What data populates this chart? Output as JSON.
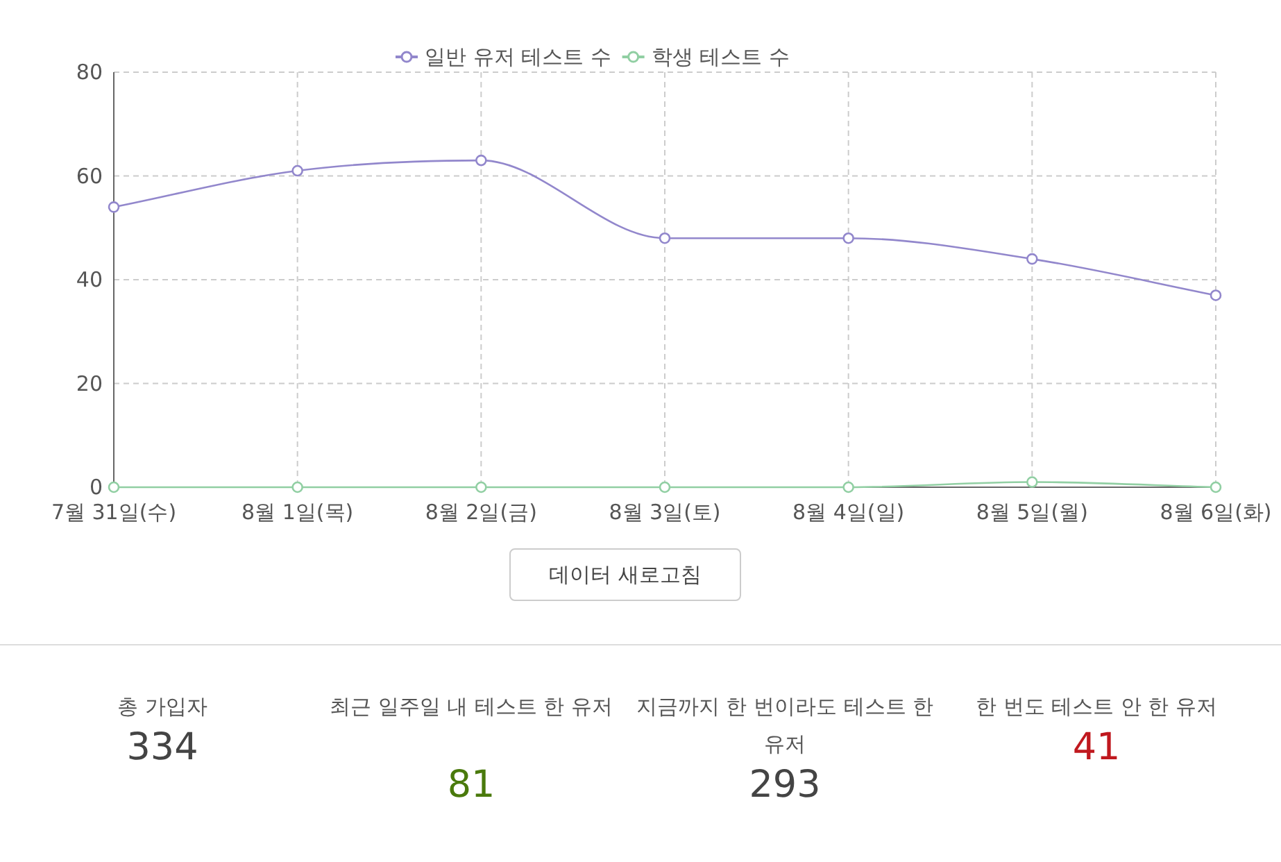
{
  "chart_data": [
    {
      "type": "line",
      "categories": [
        "7월 31일(수)",
        "8월 1일(목)",
        "8월 2일(금)",
        "8월 3일(토)",
        "8월 4일(일)",
        "8월 5일(월)",
        "8월 6일(화)"
      ],
      "series": [
        {
          "name": "일반 유저 테스트 수",
          "color": "#9287cc",
          "values": [
            54,
            61,
            63,
            48,
            48,
            44,
            37
          ]
        },
        {
          "name": "학생 테스트 수",
          "color": "#91cfa3",
          "values": [
            0,
            0,
            0,
            0,
            0,
            1,
            0
          ]
        }
      ],
      "ylim": [
        0,
        80
      ],
      "yticks": [
        0,
        20,
        40,
        60,
        80
      ],
      "grid": true,
      "legend": "top",
      "marker": "circle"
    },
    {
      "type": "other",
      "annotations": [
        "데이터 새로고침",
        "총 가입자",
        "334",
        "최근 일주일 내 테스트 한 유저",
        "81",
        "지금까지 한 번이라도 테스트 한 유저",
        "293",
        "한 번도 테스트 안 한 유저",
        "41"
      ]
    }
  ]
}
